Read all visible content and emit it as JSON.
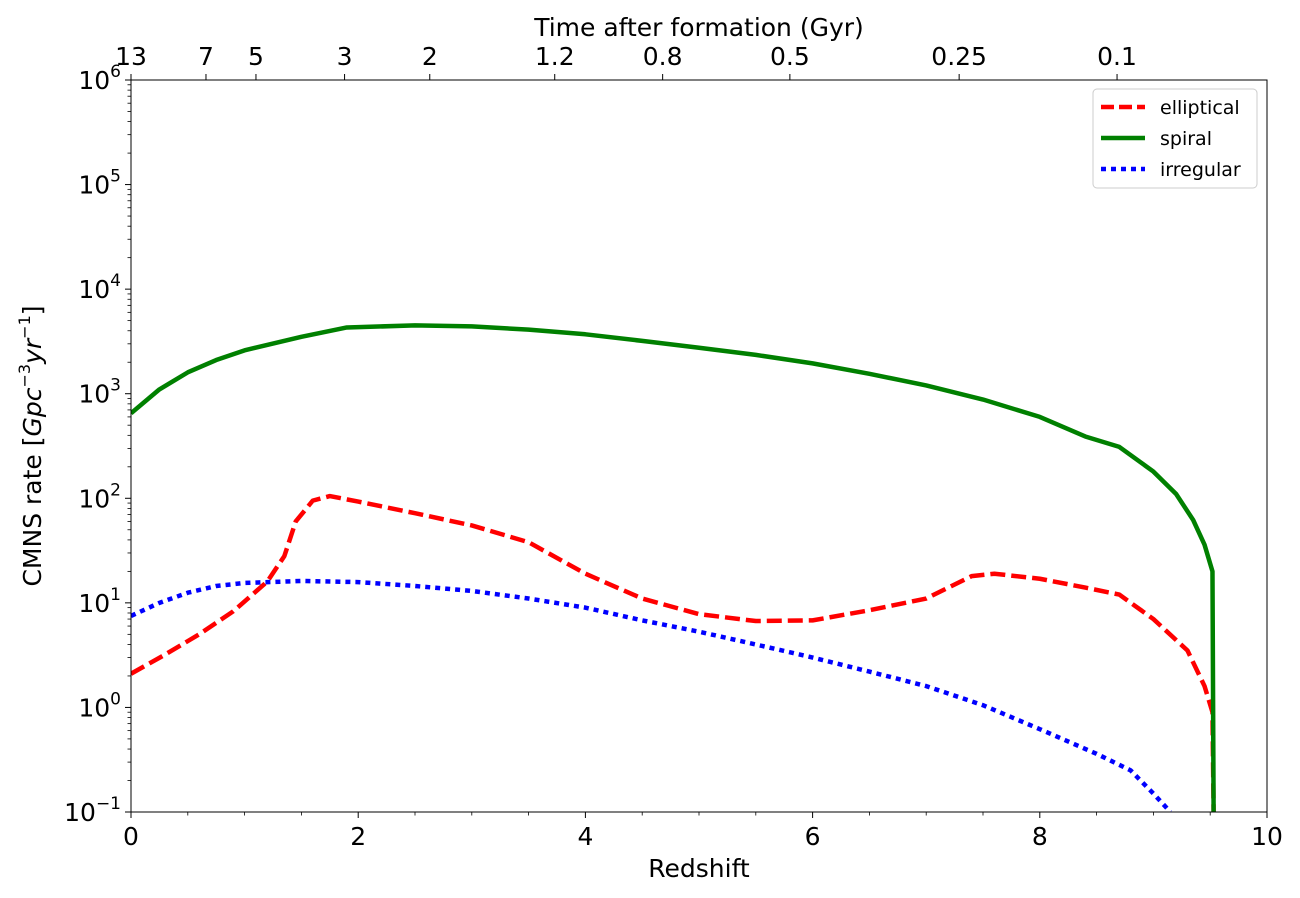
{
  "chart_data": {
    "type": "line",
    "title": "",
    "xlabel": "Redshift",
    "ylabel": "CMNS rate [Gpc⁻³yr⁻¹]",
    "ylabel_parts": {
      "prefix": "CMNS rate [",
      "math": "Gpc",
      "exp1": "−3",
      "math2": "yr",
      "exp2": "−1",
      "suffix": "]"
    },
    "xlim": [
      0,
      10
    ],
    "ylim": [
      0.1,
      1000000
    ],
    "yscale": "log",
    "xticks": [
      0,
      2,
      4,
      6,
      8,
      10
    ],
    "xtick_labels": [
      "0",
      "2",
      "4",
      "6",
      "8",
      "10"
    ],
    "yticks": [
      0.1,
      1,
      10,
      100,
      1000,
      10000,
      100000,
      1000000
    ],
    "ytick_labels": [
      {
        "base": "10",
        "exp": "−1"
      },
      {
        "base": "10",
        "exp": "0"
      },
      {
        "base": "10",
        "exp": "1"
      },
      {
        "base": "10",
        "exp": "2"
      },
      {
        "base": "10",
        "exp": "3"
      },
      {
        "base": "10",
        "exp": "4"
      },
      {
        "base": "10",
        "exp": "5"
      },
      {
        "base": "10",
        "exp": "6"
      }
    ],
    "top_axis": {
      "label": "Time after formation (Gyr)",
      "ticks": [
        {
          "z": 0.0,
          "label": "13"
        },
        {
          "z": 0.66,
          "label": "7"
        },
        {
          "z": 1.1,
          "label": "5"
        },
        {
          "z": 1.88,
          "label": "3"
        },
        {
          "z": 2.63,
          "label": "2"
        },
        {
          "z": 3.73,
          "label": "1.2"
        },
        {
          "z": 4.68,
          "label": "0.8"
        },
        {
          "z": 5.8,
          "label": "0.5"
        },
        {
          "z": 7.29,
          "label": "0.25"
        },
        {
          "z": 8.68,
          "label": "0.1"
        }
      ]
    },
    "legend": {
      "position": "top-right"
    },
    "series": [
      {
        "name": "elliptical",
        "color": "#ff0000",
        "style": "dashed",
        "points": [
          [
            0.0,
            2.1
          ],
          [
            0.3,
            3.2
          ],
          [
            0.6,
            5.0
          ],
          [
            0.9,
            8.3
          ],
          [
            1.2,
            16
          ],
          [
            1.35,
            28
          ],
          [
            1.45,
            60
          ],
          [
            1.6,
            95
          ],
          [
            1.75,
            105
          ],
          [
            2.0,
            93
          ],
          [
            2.5,
            72
          ],
          [
            3.0,
            55
          ],
          [
            3.5,
            38
          ],
          [
            4.0,
            19
          ],
          [
            4.5,
            11
          ],
          [
            5.0,
            7.8
          ],
          [
            5.5,
            6.7
          ],
          [
            6.0,
            6.8
          ],
          [
            6.5,
            8.5
          ],
          [
            7.0,
            11
          ],
          [
            7.4,
            18
          ],
          [
            7.6,
            19
          ],
          [
            8.0,
            17
          ],
          [
            8.4,
            14
          ],
          [
            8.7,
            12
          ],
          [
            9.0,
            7
          ],
          [
            9.3,
            3.5
          ],
          [
            9.45,
            1.6
          ],
          [
            9.52,
            0.9
          ],
          [
            9.53,
            0.1
          ]
        ]
      },
      {
        "name": "spiral",
        "color": "#008000",
        "style": "solid",
        "points": [
          [
            0.0,
            650
          ],
          [
            0.25,
            1100
          ],
          [
            0.5,
            1600
          ],
          [
            0.75,
            2100
          ],
          [
            1.0,
            2600
          ],
          [
            1.5,
            3500
          ],
          [
            1.9,
            4300
          ],
          [
            2.5,
            4500
          ],
          [
            3.0,
            4400
          ],
          [
            3.5,
            4100
          ],
          [
            4.0,
            3700
          ],
          [
            4.5,
            3200
          ],
          [
            5.0,
            2750
          ],
          [
            5.5,
            2350
          ],
          [
            6.0,
            1950
          ],
          [
            6.5,
            1550
          ],
          [
            7.0,
            1200
          ],
          [
            7.5,
            880
          ],
          [
            8.0,
            600
          ],
          [
            8.4,
            390
          ],
          [
            8.7,
            310
          ],
          [
            9.0,
            180
          ],
          [
            9.2,
            110
          ],
          [
            9.35,
            62
          ],
          [
            9.45,
            36
          ],
          [
            9.52,
            20
          ],
          [
            9.53,
            0.1
          ]
        ]
      },
      {
        "name": "irregular",
        "color": "#0000ff",
        "style": "dotted",
        "points": [
          [
            0.0,
            7.5
          ],
          [
            0.25,
            10
          ],
          [
            0.5,
            12.5
          ],
          [
            0.75,
            14.5
          ],
          [
            1.0,
            15.5
          ],
          [
            1.5,
            16.2
          ],
          [
            2.0,
            15.8
          ],
          [
            2.5,
            14.5
          ],
          [
            3.0,
            13
          ],
          [
            3.5,
            11
          ],
          [
            4.0,
            9
          ],
          [
            4.5,
            6.8
          ],
          [
            5.0,
            5.3
          ],
          [
            5.5,
            4
          ],
          [
            6.0,
            3
          ],
          [
            6.5,
            2.2
          ],
          [
            7.0,
            1.6
          ],
          [
            7.5,
            1.05
          ],
          [
            8.0,
            0.62
          ],
          [
            8.5,
            0.36
          ],
          [
            8.8,
            0.25
          ],
          [
            9.0,
            0.15
          ],
          [
            9.15,
            0.1
          ]
        ]
      }
    ]
  }
}
